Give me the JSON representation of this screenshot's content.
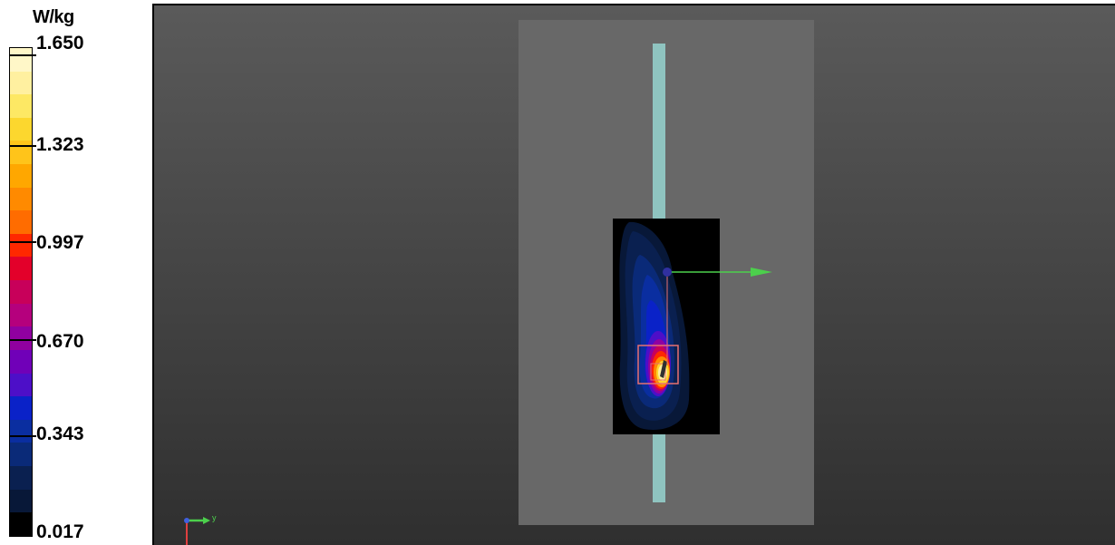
{
  "legend": {
    "unit": "W/kg",
    "ticks": [
      "1.650",
      "1.323",
      "0.997",
      "0.670",
      "0.343",
      "0.017"
    ],
    "colors": [
      "#fff7c8",
      "#fff0a0",
      "#fde864",
      "#fcd72e",
      "#ffc41a",
      "#ffa700",
      "#ff8a00",
      "#ff6c00",
      "#ff2800",
      "#e3002a",
      "#c8005a",
      "#b5007d",
      "#9000a0",
      "#7000b8",
      "#4d0fc8",
      "#0a22c8",
      "#0a2ea0",
      "#0a2a78",
      "#0a2050",
      "#081838",
      "#000000"
    ]
  },
  "viewport": {
    "triad_label": "y",
    "colors": {
      "background_top": "#5a5a5a",
      "background_bottom": "#2f2f2f",
      "phantom": "#686868",
      "device": "#8fc4c0",
      "arrow": "#4cd04c",
      "zoom_box": "#e87070"
    }
  }
}
